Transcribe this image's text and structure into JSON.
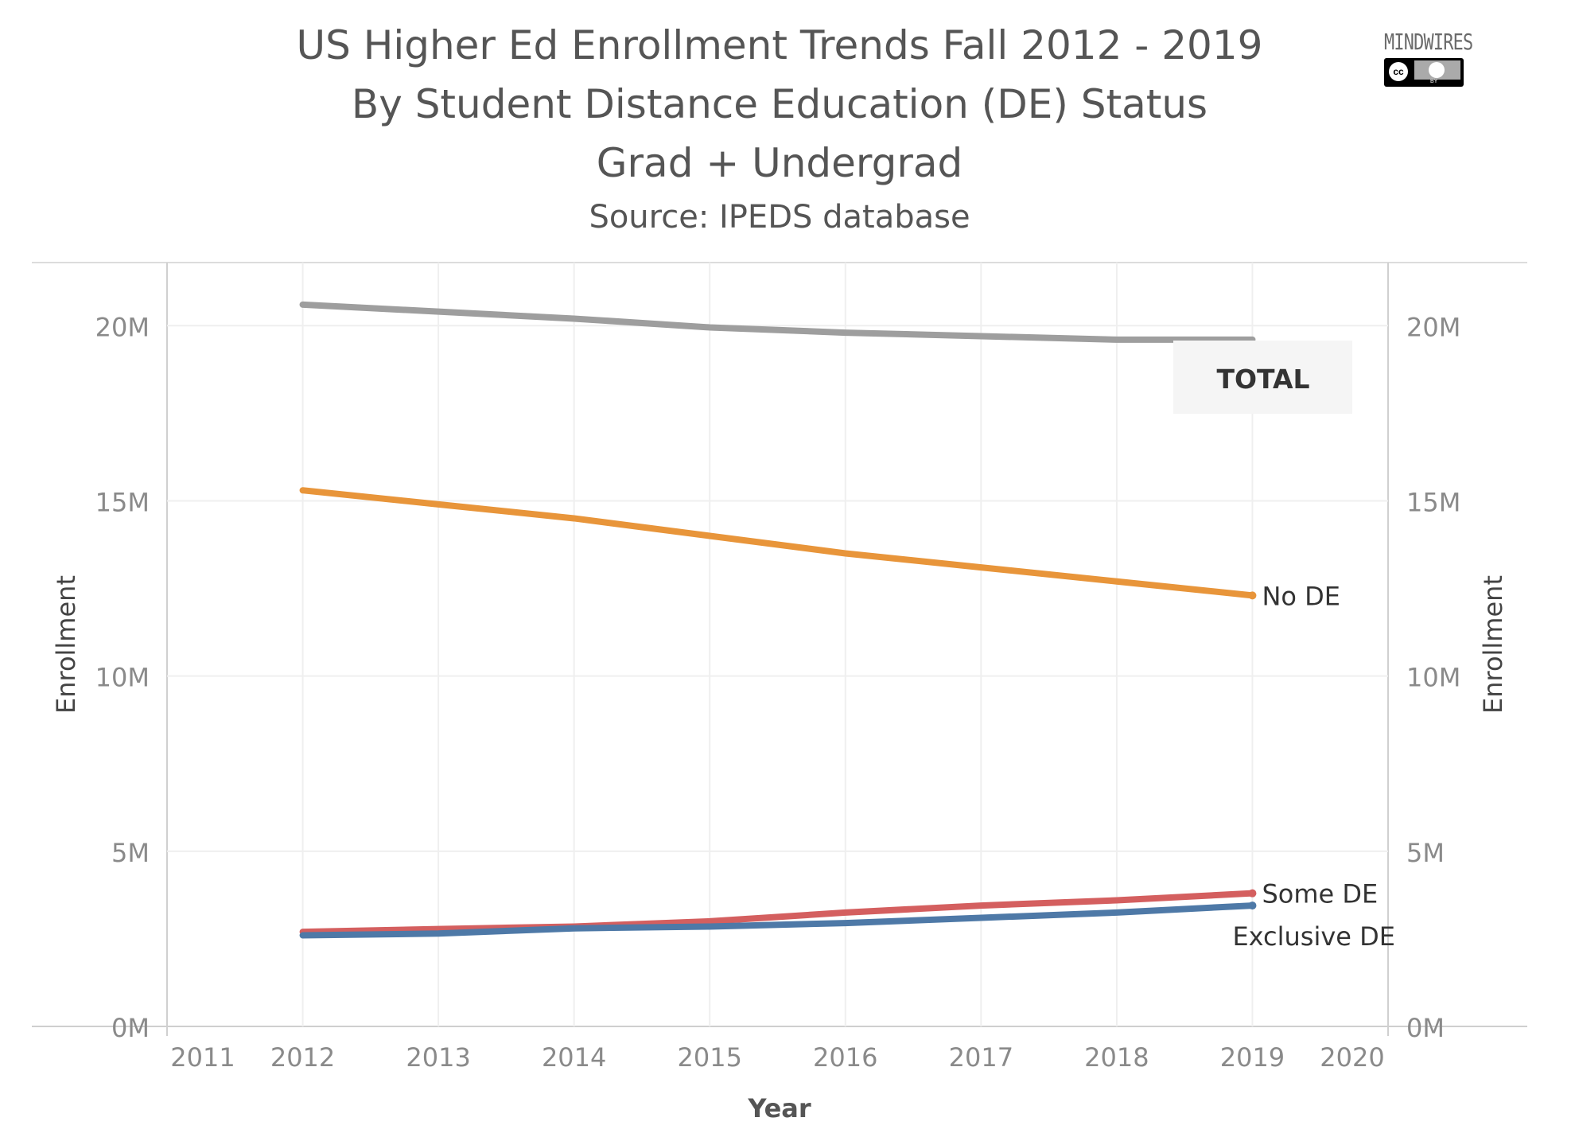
{
  "header": {
    "title_lines": [
      "US Higher Ed Enrollment Trends Fall 2012 - 2019",
      "By Student Distance Education (DE) Status",
      "Grad + Undergrad"
    ],
    "source": "Source: IPEDS database"
  },
  "logo": {
    "text": "MINDWIRES",
    "badge": "cc-by-icon"
  },
  "chart_data": {
    "type": "line",
    "title": "US Higher Ed Enrollment Trends Fall 2012 - 2019",
    "subtitle": "By Student Distance Education (DE) Status",
    "xlabel": "Year",
    "ylabel": "Enrollment",
    "y2label": "Enrollment",
    "xlim": [
      2011,
      2020
    ],
    "ylim": [
      0,
      21.8
    ],
    "x_ticks": [
      2011,
      2012,
      2013,
      2014,
      2015,
      2016,
      2017,
      2018,
      2019,
      2020
    ],
    "y_ticks": [
      0,
      5,
      10,
      15,
      20
    ],
    "y_tick_labels": [
      "0M",
      "5M",
      "10M",
      "15M",
      "20M"
    ],
    "y_unit": "millions",
    "grid": true,
    "x": [
      2012,
      2013,
      2014,
      2015,
      2016,
      2017,
      2018,
      2019
    ],
    "series": [
      {
        "name": "TOTAL",
        "color": "#9e9e9e",
        "values": [
          20.6,
          20.4,
          20.2,
          19.95,
          19.8,
          19.7,
          19.6,
          19.6
        ]
      },
      {
        "name": "No DE",
        "color": "#e8953a",
        "values": [
          15.3,
          14.9,
          14.5,
          14.0,
          13.5,
          13.1,
          12.7,
          12.3
        ]
      },
      {
        "name": "Some DE",
        "color": "#d45f5f",
        "values": [
          2.7,
          2.78,
          2.85,
          3.0,
          3.25,
          3.45,
          3.6,
          3.8
        ]
      },
      {
        "name": "Exclusive DE",
        "color": "#4e79a7",
        "values": [
          2.6,
          2.65,
          2.8,
          2.85,
          2.95,
          3.1,
          3.25,
          3.45
        ]
      }
    ]
  }
}
